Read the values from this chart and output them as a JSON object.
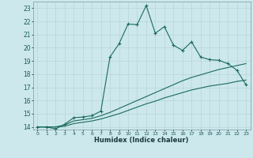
{
  "xlabel": "Humidex (Indice chaleur)",
  "bg_color": "#cce8ed",
  "grid_color": "#b8d4d8",
  "line_color": "#1a6b5a",
  "xlim": [
    -0.5,
    23.5
  ],
  "ylim": [
    13.8,
    23.5
  ],
  "yticks": [
    14,
    15,
    16,
    17,
    18,
    19,
    20,
    21,
    22,
    23
  ],
  "xticks": [
    0,
    1,
    2,
    3,
    4,
    5,
    6,
    7,
    8,
    9,
    10,
    11,
    12,
    13,
    14,
    15,
    16,
    17,
    18,
    19,
    20,
    21,
    22,
    23
  ],
  "series1_x": [
    0,
    1,
    2,
    3,
    4,
    5,
    6,
    7,
    8,
    9,
    10,
    11,
    12,
    13,
    14,
    15,
    16,
    17,
    18,
    19,
    20,
    21,
    22,
    23
  ],
  "series1_y": [
    14.0,
    14.0,
    13.85,
    14.2,
    14.7,
    14.75,
    14.85,
    15.2,
    19.3,
    20.3,
    21.8,
    21.75,
    23.2,
    21.1,
    21.6,
    20.2,
    19.8,
    20.45,
    19.3,
    19.1,
    19.05,
    18.8,
    18.3,
    17.2
  ],
  "series2_x": [
    0,
    1,
    2,
    3,
    4,
    5,
    6,
    7,
    8,
    9,
    10,
    11,
    12,
    13,
    14,
    15,
    16,
    17,
    18,
    19,
    20,
    21,
    22,
    23
  ],
  "series2_y": [
    14.0,
    14.0,
    14.0,
    14.15,
    14.45,
    14.55,
    14.65,
    14.85,
    15.1,
    15.4,
    15.7,
    16.0,
    16.3,
    16.6,
    16.9,
    17.2,
    17.5,
    17.75,
    17.95,
    18.15,
    18.35,
    18.5,
    18.65,
    18.8
  ],
  "series3_x": [
    0,
    1,
    2,
    3,
    4,
    5,
    6,
    7,
    8,
    9,
    10,
    11,
    12,
    13,
    14,
    15,
    16,
    17,
    18,
    19,
    20,
    21,
    22,
    23
  ],
  "series3_y": [
    14.0,
    14.0,
    14.0,
    14.05,
    14.25,
    14.35,
    14.45,
    14.6,
    14.8,
    15.0,
    15.25,
    15.5,
    15.75,
    15.95,
    16.2,
    16.4,
    16.6,
    16.8,
    16.95,
    17.1,
    17.2,
    17.3,
    17.45,
    17.55
  ]
}
